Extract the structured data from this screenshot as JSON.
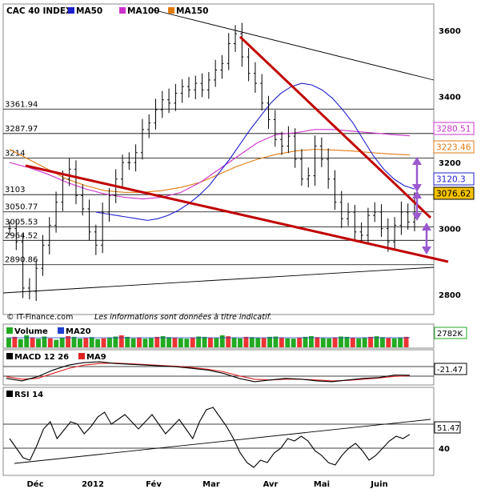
{
  "header": {
    "title": "CAC 40 INDEX",
    "legend": [
      {
        "label": "MA50",
        "color": "#1f1fcf"
      },
      {
        "label": "MA100",
        "color": "#cc33cc"
      },
      {
        "label": "MA150",
        "color": "#e07a10"
      }
    ]
  },
  "footer": {
    "source": "© IT-Finance.com",
    "disclaimer": "Les informations sont données à titre indicatif."
  },
  "colors": {
    "price": "#000000",
    "ma50": "#1f1fcf",
    "ma100": "#cc33cc",
    "ma150": "#e07a10",
    "trendline": "#c00000",
    "arrow": "#9b59d0",
    "volume_up": "#22aa22",
    "volume_down": "#ee3333",
    "ma20_volume": "#1f3fcf",
    "macd": "#000000",
    "macd_signal": "#dd2222"
  },
  "chart_data": [
    {
      "type": "line",
      "title": "CAC 40 INDEX",
      "x_labels": [
        "Déc",
        "2012",
        "Fév",
        "Mar",
        "Avr",
        "Mai",
        "Juin"
      ],
      "y_ticks": [
        2800,
        3000,
        3200,
        3400,
        3600
      ],
      "ylim": [
        2740,
        3680
      ],
      "levels": [
        {
          "label": "3361.94",
          "value": 3361.94
        },
        {
          "label": "3287.97",
          "value": 3287.97
        },
        {
          "label": "3214",
          "value": 3214
        },
        {
          "label": "3103",
          "value": 3103
        },
        {
          "label": "3050.77",
          "value": 3050.77
        },
        {
          "label": "3005.53",
          "value": 3005.53
        },
        {
          "label": "2964.52",
          "value": 2964.52
        },
        {
          "label": "2890.86",
          "value": 2890.86
        }
      ],
      "value_boxes": [
        {
          "label": "3280.51",
          "value": 3280.51,
          "series": "MA100"
        },
        {
          "label": "3223.46",
          "value": 3223.46,
          "series": "MA150"
        },
        {
          "label": "3120.3",
          "value": 3120.3,
          "series": "MA50"
        },
        {
          "label": "3076.62",
          "value": 3076.62,
          "series": "Close"
        }
      ],
      "series": [
        {
          "name": "Close",
          "values": [
            3000,
            2960,
            2820,
            2810,
            2880,
            2950,
            3010,
            3080,
            3150,
            3180,
            3100,
            3060,
            2990,
            2950,
            3050,
            3100,
            3150,
            3200,
            3200,
            3230,
            3300,
            3320,
            3360,
            3390,
            3380,
            3410,
            3430,
            3420,
            3440,
            3420,
            3450,
            3480,
            3500,
            3560,
            3590,
            3520,
            3470,
            3440,
            3380,
            3330,
            3270,
            3250,
            3280,
            3210,
            3150,
            3160,
            3250,
            3210,
            3150,
            3080,
            3030,
            3050,
            2990,
            2980,
            3040,
            3050,
            3000,
            2960,
            3010,
            3050,
            3020,
            3077
          ]
        },
        {
          "name": "MA50",
          "values": [
            3050,
            3045,
            3040,
            3035,
            3030,
            3025,
            3030,
            3040,
            3055,
            3075,
            3100,
            3130,
            3170,
            3210,
            3255,
            3300,
            3340,
            3380,
            3410,
            3430,
            3440,
            3435,
            3420,
            3395,
            3360,
            3320,
            3270,
            3220,
            3180,
            3150,
            3130,
            3120
          ]
        },
        {
          "name": "MA100",
          "values": [
            3200,
            3185,
            3165,
            3140,
            3120,
            3105,
            3095,
            3090,
            3095,
            3110,
            3140,
            3180,
            3220,
            3260,
            3285,
            3290,
            3300,
            3300,
            3295,
            3290,
            3285,
            3281
          ]
        },
        {
          "name": "MA150",
          "values": [
            3240,
            3210,
            3180,
            3150,
            3130,
            3115,
            3110,
            3110,
            3115,
            3125,
            3140,
            3165,
            3190,
            3210,
            3225,
            3235,
            3240,
            3238,
            3235,
            3230,
            3226,
            3223
          ]
        }
      ]
    },
    {
      "type": "bar",
      "title": "Volume",
      "legend": [
        "Volume",
        "MA20"
      ],
      "value_box": "2782K",
      "series": [
        {
          "name": "Volume",
          "values": [
            62,
            70,
            55,
            80,
            66,
            58,
            72,
            60,
            50,
            64,
            75,
            70,
            58,
            62,
            68,
            55,
            60,
            65,
            72,
            80,
            70,
            60,
            66,
            58,
            62,
            70,
            75,
            68,
            64,
            60,
            58,
            66,
            72,
            70,
            65,
            62,
            80,
            74,
            66,
            60,
            70,
            68,
            64,
            62,
            70,
            72,
            66,
            60,
            58,
            66,
            70,
            75,
            68,
            62,
            60,
            66,
            72,
            70,
            64,
            60,
            66,
            70,
            74,
            68,
            62,
            60,
            66,
            70
          ]
        }
      ]
    },
    {
      "type": "line",
      "title": "MACD 12 26",
      "legend": [
        "MACD 12 26",
        "MA9"
      ],
      "value_box": "-21.47",
      "series": [
        {
          "name": "MACD",
          "values": [
            -40,
            -55,
            -30,
            10,
            40,
            55,
            60,
            50,
            45,
            40,
            35,
            30,
            20,
            10,
            -10,
            -40,
            -60,
            -50,
            -40,
            -45,
            -55,
            -60,
            -50,
            -40,
            -35,
            -20,
            -21
          ]
        },
        {
          "name": "MA9",
          "values": [
            -30,
            -45,
            -40,
            -10,
            20,
            40,
            50,
            52,
            48,
            43,
            38,
            33,
            25,
            15,
            0,
            -25,
            -45,
            -50,
            -45,
            -45,
            -50,
            -55,
            -52,
            -45,
            -38,
            -28,
            -24
          ]
        }
      ]
    },
    {
      "type": "line",
      "title": "RSI 14",
      "value_box": "51.47",
      "y_ticks": [
        40,
        60
      ],
      "ylim": [
        20,
        80
      ],
      "series": [
        {
          "name": "RSI",
          "values": [
            48,
            40,
            32,
            30,
            42,
            56,
            62,
            48,
            55,
            62,
            60,
            52,
            58,
            66,
            70,
            60,
            64,
            68,
            62,
            56,
            62,
            68,
            60,
            52,
            58,
            64,
            56,
            48,
            62,
            72,
            74,
            66,
            58,
            48,
            36,
            28,
            24,
            30,
            28,
            36,
            40,
            48,
            46,
            50,
            46,
            38,
            34,
            28,
            26,
            34,
            40,
            44,
            38,
            30,
            34,
            40,
            46,
            50,
            48,
            51.47
          ]
        }
      ]
    }
  ]
}
